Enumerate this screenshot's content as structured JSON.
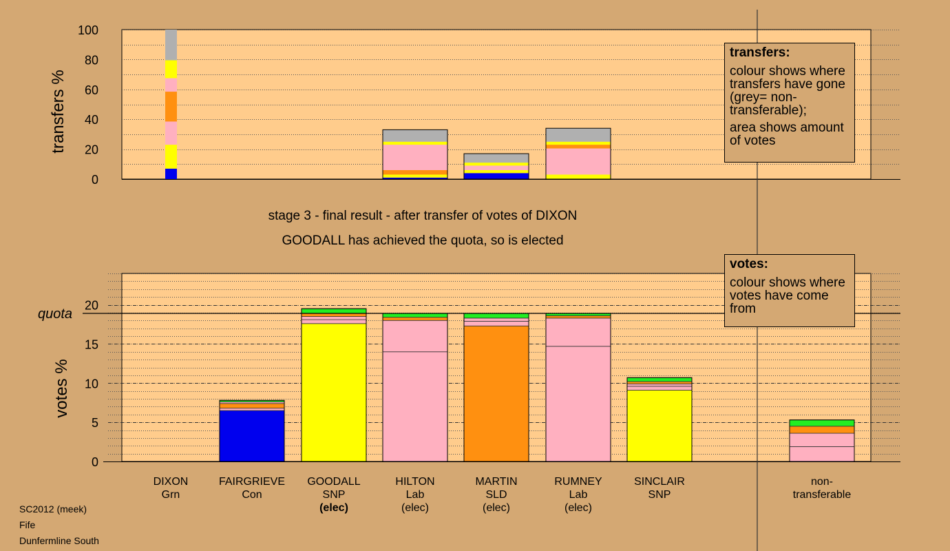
{
  "colors": {
    "Grn": "#22ee22",
    "Con": "#0000ee",
    "SNP": "#ffff00",
    "Lab": "#ffb0c0",
    "SLD": "#ff9010",
    "nontransferable": "#b0b0b0",
    "background": "#d4a873",
    "plot_bg": "#ffcc8c"
  },
  "headings": {
    "stage": "stage 3 - final result - after transfer of votes of DIXON",
    "result": "GOODALL has achieved the quota, so is elected"
  },
  "legend_transfers": {
    "title": "transfers:",
    "line1": "colour shows where transfers have gone (grey= non-transferable);",
    "line2": "area shows amount of votes"
  },
  "legend_votes": {
    "title": "votes:",
    "line1": "colour shows where votes have come from"
  },
  "meta": {
    "election": "SC2012 (meek)",
    "council": "Fife",
    "ward": "Dunfermline South"
  },
  "candidates": [
    {
      "name": "DIXON",
      "party": "Grn",
      "status": ""
    },
    {
      "name": "FAIRGRIEVE",
      "party": "Con",
      "status": ""
    },
    {
      "name": "GOODALL",
      "party": "SNP",
      "status": "(elec)"
    },
    {
      "name": "HILTON",
      "party": "Lab",
      "status": "(elec)"
    },
    {
      "name": "MARTIN",
      "party": "SLD",
      "status": "(elec)"
    },
    {
      "name": "RUMNEY",
      "party": "Lab",
      "status": "(elec)"
    },
    {
      "name": "SINCLAIR",
      "party": "SNP",
      "status": ""
    },
    {
      "name": "non-",
      "party": "transferable",
      "status": ""
    }
  ],
  "chart_data": [
    {
      "type": "bar",
      "ylabel": "transfers %",
      "ylim": [
        0,
        100
      ],
      "yticks": [
        0,
        20,
        40,
        60,
        80,
        100
      ],
      "categories": [
        "DIXON",
        "FAIRGRIEVE",
        "GOODALL",
        "HILTON",
        "MARTIN",
        "RUMNEY",
        "SINCLAIR",
        "non-transferable"
      ],
      "stacks": [
        [
          {
            "color": "Con",
            "value": 7
          },
          {
            "color": "SNP",
            "value": 16
          },
          {
            "color": "Lab",
            "value": 15.5
          },
          {
            "color": "SLD",
            "value": 20
          },
          {
            "color": "Lab",
            "value": 9
          },
          {
            "color": "SNP",
            "value": 12
          },
          {
            "color": "nontransferable",
            "value": 20.5
          }
        ],
        [],
        [],
        [
          {
            "color": "Con",
            "value": 1
          },
          {
            "color": "SNP",
            "value": 2
          },
          {
            "color": "SLD",
            "value": 3
          },
          {
            "color": "Lab",
            "value": 17
          },
          {
            "color": "SNP",
            "value": 2
          },
          {
            "color": "nontransferable",
            "value": 8
          }
        ],
        [
          {
            "color": "Con",
            "value": 4
          },
          {
            "color": "SNP",
            "value": 2
          },
          {
            "color": "Lab",
            "value": 3
          },
          {
            "color": "SNP",
            "value": 2
          },
          {
            "color": "nontransferable",
            "value": 6
          }
        ],
        [
          {
            "color": "SNP",
            "value": 3
          },
          {
            "color": "Lab",
            "value": 17.5
          },
          {
            "color": "SLD",
            "value": 2.5
          },
          {
            "color": "SNP",
            "value": 2
          },
          {
            "color": "nontransferable",
            "value": 9
          }
        ],
        [],
        []
      ]
    },
    {
      "type": "bar",
      "ylabel": "votes %",
      "ylim": [
        0,
        24
      ],
      "yticks": [
        0,
        5,
        10,
        15,
        20
      ],
      "quota": 18.9,
      "quota_label": "quota",
      "categories": [
        "DIXON",
        "FAIRGRIEVE",
        "GOODALL",
        "HILTON",
        "MARTIN",
        "RUMNEY",
        "SINCLAIR",
        "non-transferable"
      ],
      "stacks": [
        [],
        [
          {
            "color": "Con",
            "value": 6.5
          },
          {
            "color": "Lab",
            "value": 0.3
          },
          {
            "color": "SLD",
            "value": 0.6
          },
          {
            "color": "Lab",
            "value": 0.2
          },
          {
            "color": "Grn",
            "value": 0.2
          }
        ],
        [
          {
            "color": "SNP",
            "value": 17.6
          },
          {
            "color": "Lab",
            "value": 0.5
          },
          {
            "color": "Lab",
            "value": 0.4
          },
          {
            "color": "SLD",
            "value": 0.4
          },
          {
            "color": "Grn",
            "value": 0.6
          }
        ],
        [
          {
            "color": "Lab",
            "value": 14.0
          },
          {
            "color": "Lab",
            "value": 4.0
          },
          {
            "color": "SLD",
            "value": 0.4
          },
          {
            "color": "Grn",
            "value": 0.5
          }
        ],
        [
          {
            "color": "SLD",
            "value": 17.3
          },
          {
            "color": "Lab",
            "value": 0.6
          },
          {
            "color": "Lab",
            "value": 0.4
          },
          {
            "color": "Grn",
            "value": 0.6
          }
        ],
        [
          {
            "color": "Lab",
            "value": 14.7
          },
          {
            "color": "Lab",
            "value": 3.6
          },
          {
            "color": "SLD",
            "value": 0.3
          },
          {
            "color": "Grn",
            "value": 0.3
          }
        ],
        [
          {
            "color": "SNP",
            "value": 9.1
          },
          {
            "color": "Lab",
            "value": 0.5
          },
          {
            "color": "Lab",
            "value": 0.3
          },
          {
            "color": "SLD",
            "value": 0.3
          },
          {
            "color": "Grn",
            "value": 0.5
          }
        ],
        [
          {
            "color": "Lab",
            "value": 1.9
          },
          {
            "color": "Lab",
            "value": 1.7
          },
          {
            "color": "SLD",
            "value": 0.9
          },
          {
            "color": "Grn",
            "value": 0.8
          }
        ]
      ]
    }
  ]
}
